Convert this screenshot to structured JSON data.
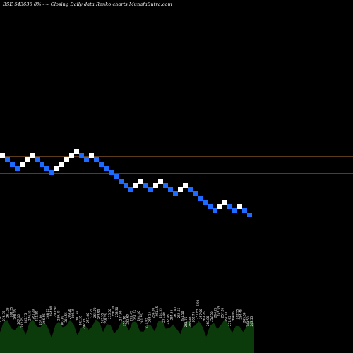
{
  "title": "BSE 543636  8%~~  Closing Daily data  Renko  charts MunafaSutra.com",
  "colors": {
    "background": "#000000",
    "up_brick": "#ffffff",
    "down_brick": "#1e6bff",
    "reference_line": "#b87333",
    "volume_fill": "#0b3a0b",
    "volume_label": "#ffffff"
  },
  "chart_data": [
    {
      "type": "renko",
      "direction_code": "U = up brick (white), D = down brick (blue)",
      "bricks": [
        "U",
        "D",
        "D",
        "D",
        "U",
        "U",
        "U",
        "D",
        "D",
        "D",
        "D",
        "U",
        "U",
        "U",
        "U",
        "U",
        "D",
        "D",
        "U",
        "D",
        "D",
        "D",
        "D",
        "D",
        "D",
        "D",
        "D",
        "U",
        "U",
        "D",
        "D",
        "U",
        "U",
        "D",
        "D",
        "D",
        "U",
        "U",
        "D",
        "D",
        "D",
        "D",
        "D",
        "D",
        "U",
        "U",
        "D",
        "D",
        "U",
        "D",
        "D"
      ],
      "reference_lines": 2
    },
    {
      "type": "area",
      "volume_labels": [
        "251.30",
        "276.35",
        "261.25",
        "281.35",
        "268.15",
        "267.15",
        "282.75",
        "285.75",
        "276.55",
        "281.20",
        "271.50",
        "267.50",
        "266.55",
        "268.15",
        "284.90",
        "290.50",
        "289.45",
        "303.00",
        "301.55",
        "299.20",
        "306.35",
        "307.40",
        "302.35",
        "292.75",
        "273.00",
        "272.75",
        "265.70",
        "283.90",
        "263.55",
        "258.35",
        "255.50",
        "256.70",
        "253.30",
        "247.90",
        "256.10",
        "251.60",
        "262.45",
        "267.65",
        "264.40",
        "281.55",
        "271.05",
        "263.15",
        "268.60",
        "261.45",
        "264.55",
        "271.40",
        "272.05",
        "254.55",
        "261.40",
        "265.65",
        "281.50",
        "261.75",
        "268.45",
        "262.75",
        "251.65",
        "257.00",
        "263.75",
        "268.80",
        "252.55",
        "264.25",
        "245.55",
        "257.05",
        "262.10",
        "257.95",
        "269.05",
        "262.55",
        "254.45",
        "245.50",
        "249.50",
        "243.55"
      ],
      "extra_label": "6.90"
    }
  ]
}
